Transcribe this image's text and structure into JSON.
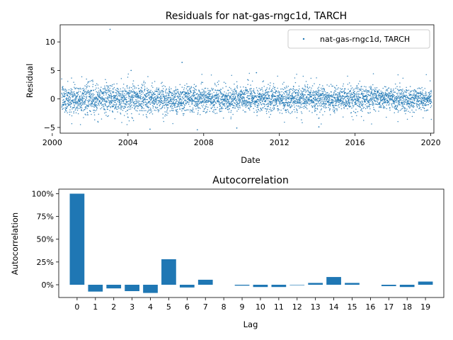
{
  "chart_data": [
    {
      "type": "scatter",
      "title": "Residuals for nat-gas-rngc1d, TARCH",
      "xlabel": "Date",
      "ylabel": "Residual",
      "legend": {
        "label": "nat-gas-rngc1d, TARCH",
        "placement": "top-right"
      },
      "x_range": [
        "2000-06-01",
        "2020-03-01"
      ],
      "ylim": [
        -6,
        13
      ],
      "x_ticks": [
        "2000",
        "2004",
        "2008",
        "2012",
        "2016",
        "2020"
      ],
      "y_ticks": [
        -5,
        0,
        5,
        10
      ],
      "color": "#1f77b4",
      "grid": false,
      "notable_points": [
        {
          "x": "2003-01-20",
          "y": 12.2
        },
        {
          "x": "2006-11-10",
          "y": 6.4
        },
        {
          "x": "2004-03-01",
          "y": 5.0
        },
        {
          "x": "2010-10-15",
          "y": 4.6
        },
        {
          "x": "2007-09-01",
          "y": -5.4
        },
        {
          "x": "2005-03-01",
          "y": -5.3
        },
        {
          "x": "2009-10-01",
          "y": -5.1
        },
        {
          "x": "2014-02-01",
          "y": -4.9
        }
      ],
      "bulk_residual_spread": 1.1
    },
    {
      "type": "bar",
      "title": "Autocorrelation",
      "xlabel": "Lag",
      "ylabel": "Autocorrelation",
      "categories": [
        "0",
        "1",
        "2",
        "3",
        "4",
        "5",
        "6",
        "7",
        "8",
        "9",
        "10",
        "11",
        "12",
        "13",
        "14",
        "15",
        "16",
        "17",
        "18",
        "19"
      ],
      "values": [
        1.0,
        -0.075,
        -0.04,
        -0.07,
        -0.09,
        0.28,
        -0.03,
        0.055,
        0.0,
        -0.01,
        -0.025,
        -0.025,
        -0.005,
        0.02,
        0.085,
        0.02,
        0.0,
        -0.015,
        -0.025,
        0.035
      ],
      "ylim": [
        -0.14,
        1.05
      ],
      "y_ticks": [
        "0%",
        "25%",
        "50%",
        "75%",
        "100%"
      ],
      "color": "#1f77b4",
      "grid": false
    }
  ]
}
